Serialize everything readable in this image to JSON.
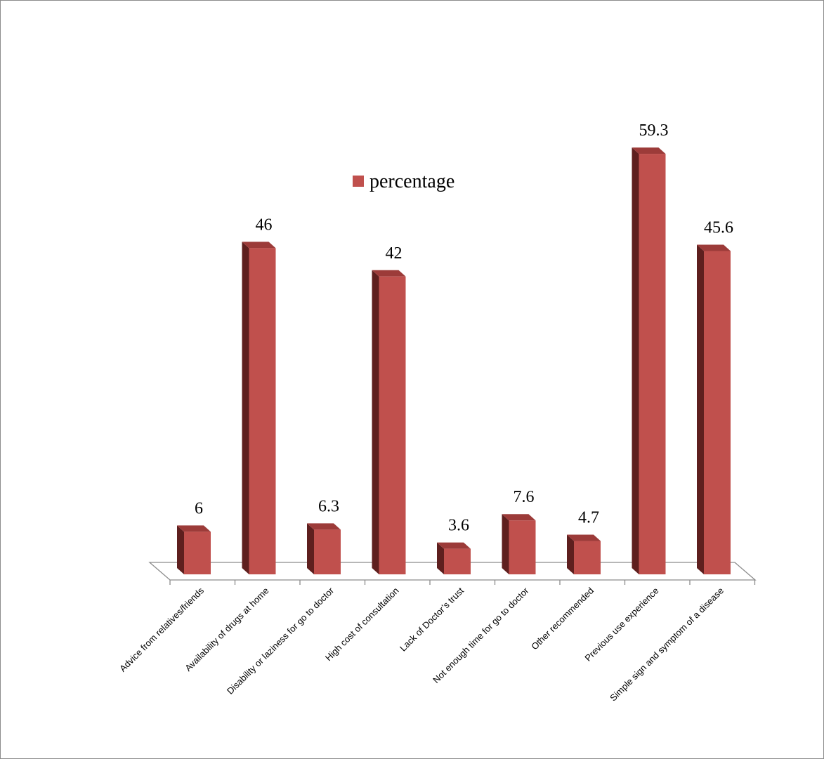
{
  "chart_data": {
    "type": "bar",
    "style": "3d-column",
    "categories": [
      "Advice from relatives/friends",
      "Availability of drugs at home",
      "Disability or laziness for go to doctor",
      "High cost of consultation",
      "Lack of Doctor’s trust",
      "Not enough time for go to doctor",
      "Other recommended",
      "Previous use experience",
      "Simple sign and symptom of a disease"
    ],
    "series": [
      {
        "name": "percentage",
        "values": [
          6,
          46,
          6.3,
          42,
          3.6,
          7.6,
          4.7,
          59.3,
          45.6
        ],
        "labels": [
          "6",
          "46",
          "6.3",
          "42",
          "3.6",
          "7.6",
          "4.7",
          "59.3",
          "45.6"
        ],
        "color": "#c0504d"
      }
    ],
    "ylim": [
      0,
      60
    ],
    "grid": false,
    "y_axis_visible": false,
    "data_labels": true,
    "legend": {
      "position": "top-center",
      "entries": [
        "percentage"
      ]
    }
  }
}
